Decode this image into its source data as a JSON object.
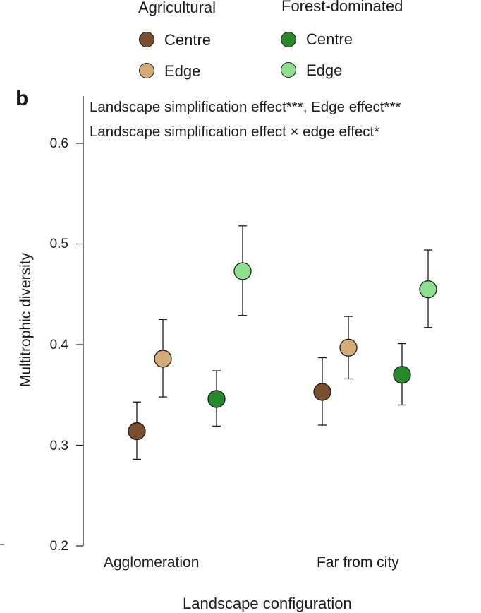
{
  "chart_data": {
    "type": "scatter",
    "panel_label": "b",
    "ylabel": "Multitrophic diversity",
    "xlabel": "Landscape configuration",
    "ylim": [
      0.2,
      0.65
    ],
    "yticks": [
      0.2,
      0.3,
      0.4,
      0.5,
      0.6
    ],
    "ytick_labels": [
      "0.2",
      "0.3",
      "0.4",
      "0.5",
      "0.6"
    ],
    "categories": [
      "Agglomeration",
      "Far from city"
    ],
    "annotations": [
      "Landscape simplification effect***, Edge effect***",
      "Landscape simplification effect × edge effect*"
    ],
    "legend": {
      "groups": [
        {
          "title": "Agricultural",
          "entries": [
            {
              "label": "Centre",
              "color": "#7a4f2f"
            },
            {
              "label": "Edge",
              "color": "#d4aa78"
            }
          ]
        },
        {
          "title": "Forest-dominated",
          "entries": [
            {
              "label": "Centre",
              "color": "#27882c"
            },
            {
              "label": "Edge",
              "color": "#8edf8e"
            }
          ]
        }
      ]
    },
    "series": [
      {
        "name": "Agricultural Centre",
        "color": "#7a4f2f",
        "values": [
          0.314,
          0.353
        ],
        "lower": [
          0.286,
          0.32
        ],
        "upper": [
          0.343,
          0.387
        ]
      },
      {
        "name": "Agricultural Edge",
        "color": "#d4aa78",
        "values": [
          0.386,
          0.397
        ],
        "lower": [
          0.348,
          0.366
        ],
        "upper": [
          0.425,
          0.428
        ]
      },
      {
        "name": "Forest-dominated Centre",
        "color": "#27882c",
        "values": [
          0.346,
          0.37
        ],
        "lower": [
          0.319,
          0.34
        ],
        "upper": [
          0.374,
          0.401
        ]
      },
      {
        "name": "Forest-dominated Edge",
        "color": "#8edf8e",
        "values": [
          0.473,
          0.455
        ],
        "lower": [
          0.429,
          0.417
        ],
        "upper": [
          0.518,
          0.494
        ]
      }
    ]
  }
}
